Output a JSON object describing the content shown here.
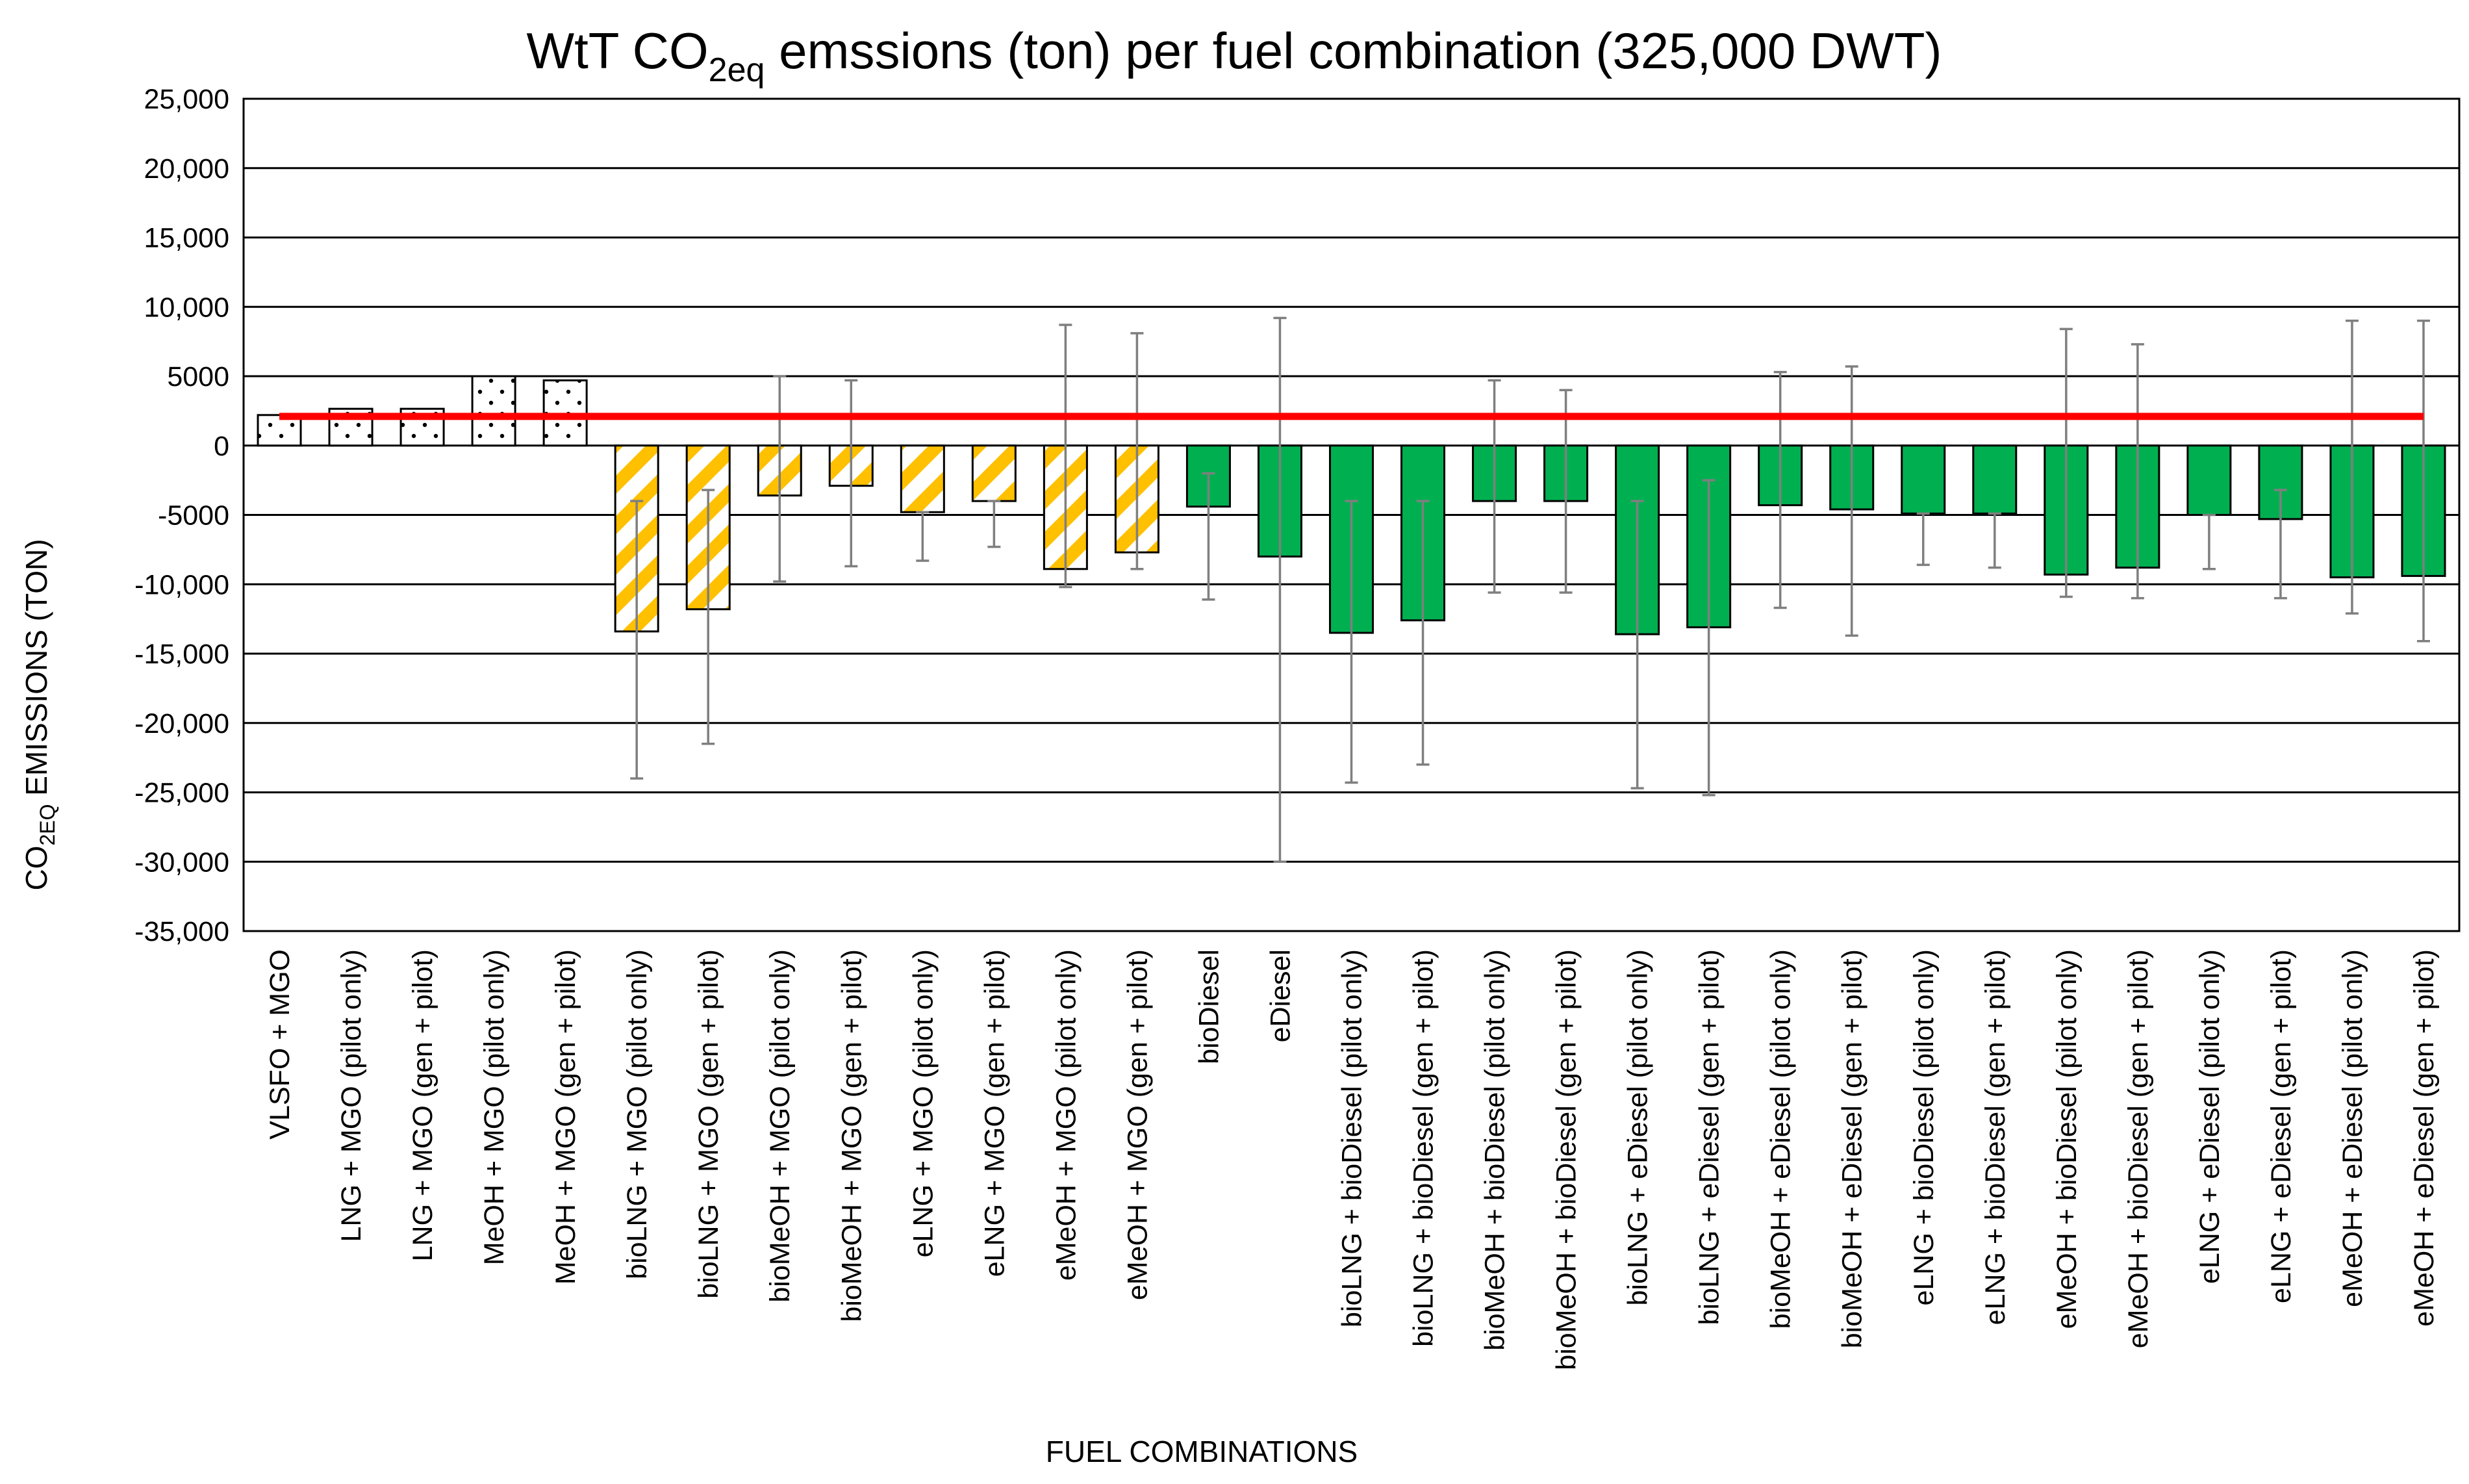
{
  "chart_data": {
    "type": "bar",
    "title": {
      "main": "WtT CO",
      "sub": "2eq",
      "rest": " emssions (ton) per fuel combination (325,000 DWT)"
    },
    "xlabel": "FUEL COMBINATIONS",
    "ylabel": {
      "main": "CO",
      "sub": "2EQ",
      "rest": " EMISSIONS (TON)"
    },
    "ylim": [
      -35000,
      25000
    ],
    "yticks": [
      25000,
      20000,
      15000,
      10000,
      5000,
      0,
      -5000,
      -10000,
      -15000,
      -20000,
      -25000,
      -30000,
      -35000
    ],
    "ytick_labels": [
      "25,000",
      "20,000",
      "15,000",
      "10,000",
      "5000",
      "0",
      "-5000",
      "-10,000",
      "-15,000",
      "-20,000",
      "-25,000",
      "-30,000",
      "-35,000"
    ],
    "grid": true,
    "reference_line": {
      "value": 2100,
      "color": "#ff0000"
    },
    "categories": [
      "VLSFO + MGO",
      "LNG + MGO (pilot only)",
      "LNG + MGO (gen + pilot)",
      "MeOH + MGO (pilot only)",
      "MeOH + MGO (gen + pilot)",
      "bioLNG + MGO (pilot only)",
      "bioLNG + MGO (gen + pilot)",
      "bioMeOH + MGO (pilot only)",
      "bioMeOH + MGO (gen + pilot)",
      "eLNG + MGO (pilot only)",
      "eLNG + MGO (gen + pilot)",
      "eMeOH + MGO (pilot only)",
      "eMeOH + MGO (gen + pilot)",
      "bioDiesel",
      "eDiesel",
      "bioLNG + bioDiesel (pilot only)",
      "bioLNG + bioDiesel (gen + pilot)",
      "bioMeOH + bioDiesel (pilot only)",
      "bioMeOH + bioDiesel (gen + pilot)",
      "bioLNG + eDiesel (pilot only)",
      "bioLNG + eDiesel (gen + pilot)",
      "bioMeOH + eDiesel (pilot only)",
      "bioMeOH + eDiesel (gen + pilot)",
      "eLNG + bioDiesel (pilot only)",
      "eLNG + bioDiesel (gen + pilot)",
      "eMeOH + bioDiesel (pilot only)",
      "eMeOH + bioDiesel (gen + pilot)",
      "eLNG + eDiesel (pilot only)",
      "eLNG + eDiesel (gen + pilot)",
      "eMeOH + eDiesel (pilot only)",
      "eMeOH + eDiesel (gen + pilot)"
    ],
    "values": [
      2200,
      2650,
      2650,
      5000,
      4700,
      -13400,
      -11800,
      -3600,
      -2900,
      -4800,
      -4000,
      -8900,
      -7700,
      -4400,
      -8000,
      -13500,
      -12600,
      -4000,
      -4000,
      -13600,
      -13100,
      -4300,
      -4600,
      -4900,
      -4900,
      -9300,
      -8800,
      -5000,
      -5300,
      -9500,
      -9400
    ],
    "error_high": [
      null,
      null,
      null,
      null,
      null,
      -4000,
      -3200,
      5000,
      4700,
      -4800,
      -4000,
      8700,
      8100,
      -2000,
      9200,
      -4000,
      -4000,
      4700,
      4000,
      -4000,
      -2500,
      5300,
      5700,
      -4900,
      -4900,
      8400,
      7300,
      -5000,
      -3200,
      9000,
      9000
    ],
    "error_low": [
      null,
      null,
      null,
      null,
      null,
      -24000,
      -21500,
      -9800,
      -8700,
      -8300,
      -7300,
      -10200,
      -8900,
      -11100,
      -30000,
      -24300,
      -23000,
      -10600,
      -10600,
      -24700,
      -25200,
      -11700,
      -13700,
      -8600,
      -8800,
      -10900,
      -11000,
      -8900,
      -11000,
      -12100,
      -14100
    ],
    "patterns": [
      "dots",
      "dots",
      "dots",
      "dots",
      "dots",
      "hatch",
      "hatch",
      "hatch",
      "hatch",
      "hatch",
      "hatch",
      "hatch",
      "hatch",
      "solid",
      "solid",
      "solid",
      "solid",
      "solid",
      "solid",
      "solid",
      "solid",
      "solid",
      "solid",
      "solid",
      "solid",
      "solid",
      "solid",
      "solid",
      "solid",
      "solid",
      "solid"
    ],
    "colors": {
      "fossil": "#ffffff",
      "hatch": "#ffc000",
      "green": "#00b050",
      "reference": "#ff0000",
      "error_bar": "#7f7f7f",
      "grid": "#000000"
    }
  }
}
